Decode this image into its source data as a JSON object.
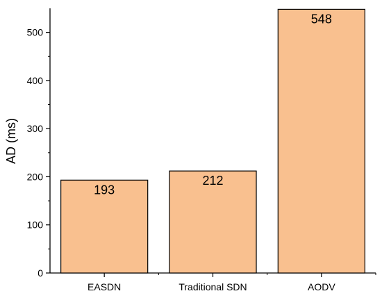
{
  "chart_data": {
    "type": "bar",
    "categories": [
      "EASDN",
      "Traditional SDN",
      "AODV"
    ],
    "values": [
      193,
      212,
      548
    ],
    "value_labels": [
      "193",
      "212",
      "548"
    ],
    "ylabel": "AD (ms)",
    "xlabel": "",
    "ylim": [
      0,
      550
    ],
    "yticks": [
      0,
      100,
      200,
      300,
      400,
      500
    ],
    "ytick_labels": [
      "0",
      "100",
      "200",
      "300",
      "400",
      "500"
    ],
    "grid": false,
    "colors": {
      "bar_fill": "#f9c08f",
      "bar_stroke": "#000000",
      "axis": "#000000"
    }
  }
}
